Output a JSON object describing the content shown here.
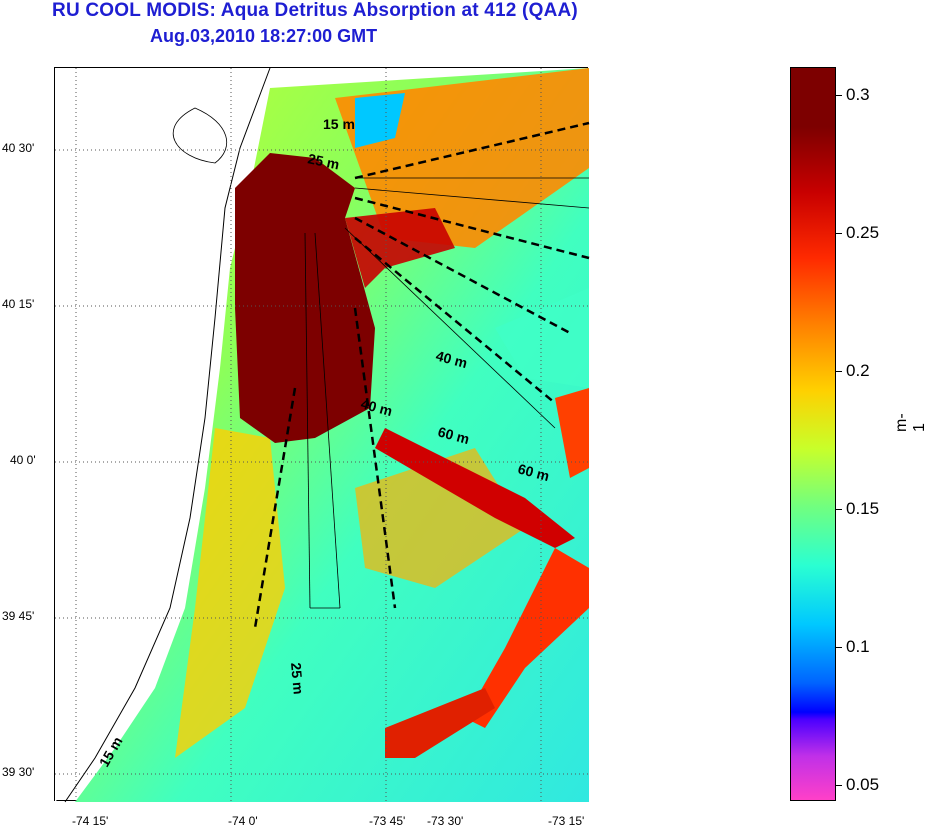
{
  "title": {
    "line1": "RU COOL MODIS: Aqua Detritus Absorption at 412 (QAA)",
    "line2": "Aug.03,2010 18:27:00 GMT"
  },
  "map": {
    "lat_ticks": [
      "40 30'",
      "40 15'",
      "40 0'",
      "39 45'",
      "39 30'"
    ],
    "lon_ticks": [
      "-74 15'",
      "-74 0'",
      "-73 45'",
      "-73 30'",
      "-73 15'"
    ],
    "depth_labels": [
      "15 m",
      "25 m",
      "40 m",
      "40 m",
      "60 m",
      "60 m",
      "25 m",
      "15 m"
    ]
  },
  "colorbar": {
    "ticks": [
      "0.3",
      "0.25",
      "0.2",
      "0.15",
      "0.1",
      "0.05"
    ],
    "unit": "m-1",
    "colors": {
      "max": "#7d0000",
      "high": "#ff2a00",
      "mid": "#c8ff2a",
      "low": "#00c8ff",
      "min": "#ff40c8"
    }
  }
}
